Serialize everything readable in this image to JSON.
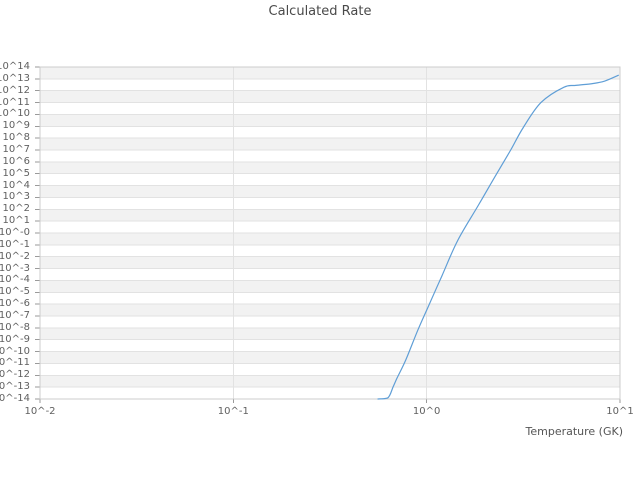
{
  "title": "Calculated Rate",
  "chart_data": {
    "type": "line",
    "title": "Calculated Rate",
    "xlabel": "Temperature (GK)",
    "ylabel": "",
    "x_scale": "log10",
    "y_scale": "log10",
    "xlim_log10": [
      -2,
      1
    ],
    "ylim_log10": [
      -14,
      14
    ],
    "grid": "horizontal and vertical decade gridlines with alternating gray/white decade bands",
    "legend": "none",
    "x_ticks": [
      {
        "log10": -2,
        "label": "10^-2"
      },
      {
        "log10": -1,
        "label": "10^-1"
      },
      {
        "log10": 0,
        "label": "10^0"
      },
      {
        "log10": 1,
        "label": "10^1"
      }
    ],
    "y_ticks": [
      {
        "log10": 14,
        "label": "10^14"
      },
      {
        "log10": 13,
        "label": "10^13"
      },
      {
        "log10": 12,
        "label": "10^12"
      },
      {
        "log10": 11,
        "label": "10^11"
      },
      {
        "log10": 10,
        "label": "10^10"
      },
      {
        "log10": 9,
        "label": "10^9"
      },
      {
        "log10": 8,
        "label": "10^8"
      },
      {
        "log10": 7,
        "label": "10^7"
      },
      {
        "log10": 6,
        "label": "10^6"
      },
      {
        "log10": 5,
        "label": "10^5"
      },
      {
        "log10": 4,
        "label": "10^4"
      },
      {
        "log10": 3,
        "label": "10^3"
      },
      {
        "log10": 2,
        "label": "10^2"
      },
      {
        "log10": 1,
        "label": "10^1"
      },
      {
        "log10": 0,
        "label": "10^-0"
      },
      {
        "log10": -1,
        "label": "10^-1"
      },
      {
        "log10": -2,
        "label": "10^-2"
      },
      {
        "log10": -3,
        "label": "10^-3"
      },
      {
        "log10": -4,
        "label": "10^-4"
      },
      {
        "log10": -5,
        "label": "10^-5"
      },
      {
        "log10": -6,
        "label": "10^-6"
      },
      {
        "log10": -7,
        "label": "10^-7"
      },
      {
        "log10": -8,
        "label": "10^-8"
      },
      {
        "log10": -9,
        "label": "10^-9"
      },
      {
        "log10": -10,
        "label": "10^-10"
      },
      {
        "log10": -11,
        "label": "10^-11"
      },
      {
        "log10": -12,
        "label": "10^-12"
      },
      {
        "log10": -13,
        "label": "10^-13"
      },
      {
        "log10": -14,
        "label": "10^-14"
      }
    ],
    "series": [
      {
        "name": "calculated-rate",
        "color": "#5f9ed6",
        "points_T_log10rate": [
          [
            0.56,
            -14.0
          ],
          [
            0.63,
            -13.9
          ],
          [
            0.67,
            -13.0
          ],
          [
            0.7,
            -12.3
          ],
          [
            0.78,
            -10.7
          ],
          [
            0.9,
            -8.2
          ],
          [
            1.0,
            -6.5
          ],
          [
            1.2,
            -3.6
          ],
          [
            1.45,
            -0.6
          ],
          [
            1.86,
            2.4
          ],
          [
            2.36,
            5.3
          ],
          [
            2.72,
            7.0
          ],
          [
            3.16,
            8.9
          ],
          [
            3.9,
            11.0
          ],
          [
            5.13,
            12.3
          ],
          [
            5.9,
            12.45
          ],
          [
            7.2,
            12.6
          ],
          [
            8.3,
            12.8
          ],
          [
            9.8,
            13.3
          ]
        ]
      }
    ]
  }
}
